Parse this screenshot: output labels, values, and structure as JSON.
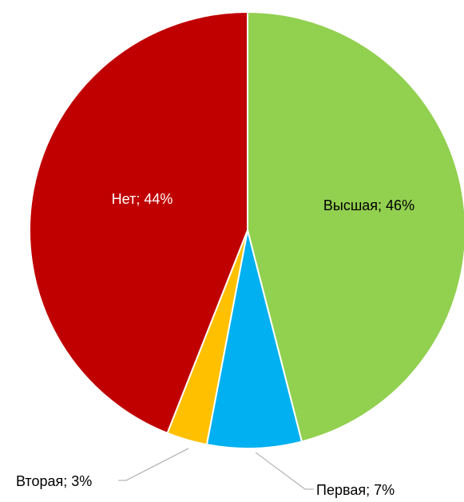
{
  "chart_data": {
    "type": "pie",
    "title": "",
    "slices": [
      {
        "label": "Высшая",
        "value": 46,
        "display": "Высшая; 46%",
        "color": "#92d050",
        "label_color": "#000000"
      },
      {
        "label": "Первая",
        "value": 7,
        "display": "Первая; 7%",
        "color": "#00b0f0",
        "label_color": "#000000"
      },
      {
        "label": "Вторая",
        "value": 3,
        "display": "Вторая; 3%",
        "color": "#ffc000",
        "label_color": "#000000"
      },
      {
        "label": "Нет",
        "value": 44,
        "display": "Нет; 44%",
        "color": "#c00000",
        "label_color": "#ffffff"
      }
    ],
    "start_angle_deg": 0,
    "direction": "clockwise",
    "legend": "none",
    "data_label_format": "category; percent"
  }
}
